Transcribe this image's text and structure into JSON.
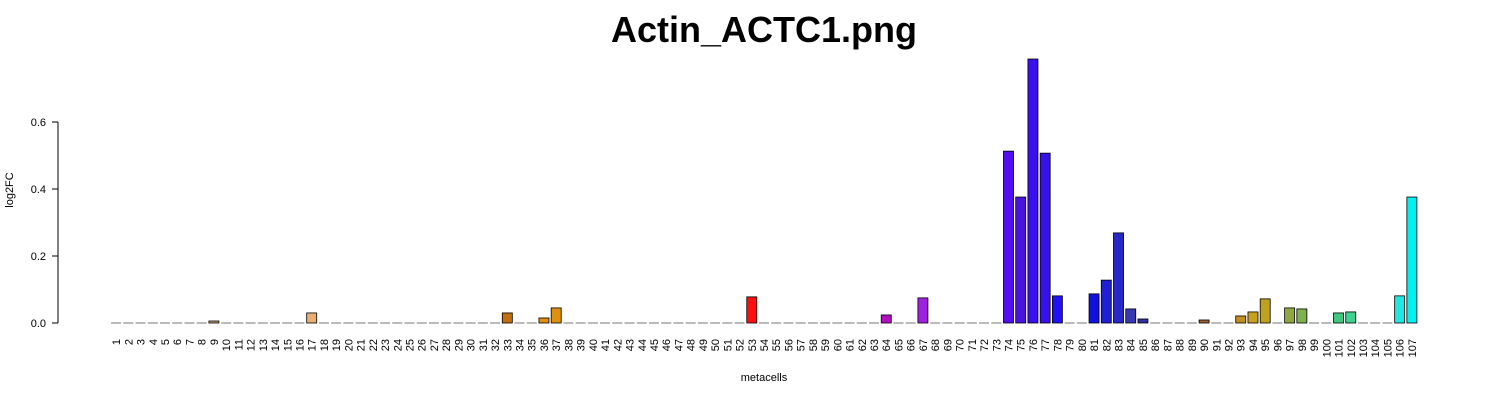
{
  "chart_data": {
    "type": "bar",
    "title": "Actin_ACTC1.png",
    "x_label": "metacells",
    "y_label": "log2FC",
    "categories": [
      "1",
      "2",
      "3",
      "4",
      "5",
      "6",
      "7",
      "8",
      "9",
      "10",
      "11",
      "12",
      "13",
      "14",
      "15",
      "16",
      "17",
      "18",
      "19",
      "20",
      "21",
      "22",
      "23",
      "24",
      "25",
      "26",
      "27",
      "28",
      "29",
      "30",
      "31",
      "32",
      "33",
      "34",
      "35",
      "36",
      "37",
      "38",
      "39",
      "40",
      "41",
      "42",
      "43",
      "44",
      "45",
      "46",
      "47",
      "48",
      "49",
      "50",
      "51",
      "52",
      "53",
      "54",
      "55",
      "56",
      "57",
      "58",
      "59",
      "60",
      "61",
      "62",
      "63",
      "64",
      "65",
      "66",
      "67",
      "68",
      "69",
      "70",
      "71",
      "72",
      "73",
      "74",
      "75",
      "76",
      "77",
      "78",
      "79",
      "80",
      "81",
      "82",
      "83",
      "84",
      "85",
      "86",
      "87",
      "88",
      "89",
      "90",
      "91",
      "92",
      "93",
      "94",
      "95",
      "96",
      "97",
      "98",
      "99",
      "100",
      "101",
      "102",
      "103",
      "104",
      "105",
      "106",
      "107"
    ],
    "values": [
      0,
      0,
      0,
      0,
      0,
      0,
      0,
      0,
      0.006,
      0,
      0,
      0,
      0,
      0,
      0,
      0,
      0.03,
      0,
      0,
      0,
      0,
      0,
      0,
      0,
      0,
      0,
      0,
      0,
      0,
      0,
      0,
      0,
      0.03,
      0,
      0,
      0.015,
      0.045,
      0,
      0,
      0,
      0,
      0,
      0,
      0,
      0,
      0,
      0,
      0,
      0,
      0,
      0,
      0,
      0.078,
      0,
      0,
      0,
      0,
      0,
      0,
      0,
      0,
      0,
      0,
      0.024,
      0,
      0,
      0.075,
      0,
      0,
      0,
      0,
      0,
      0,
      0.513,
      0.376,
      0.788,
      0.507,
      0.081,
      0,
      0,
      0.087,
      0.128,
      0.269,
      0.042,
      0.012,
      0,
      0,
      0,
      0,
      0.009,
      0,
      0,
      0.021,
      0.033,
      0.072,
      0,
      0.045,
      0.042,
      0,
      0,
      0.03,
      0.033,
      0,
      0,
      0,
      0.081,
      0.376
    ],
    "colors": [
      "#999999",
      "#999999",
      "#999999",
      "#999999",
      "#999999",
      "#999999",
      "#999999",
      "#999999",
      "#c8a070",
      "#999999",
      "#999999",
      "#999999",
      "#999999",
      "#999999",
      "#999999",
      "#999999",
      "#e8b070",
      "#999999",
      "#999999",
      "#999999",
      "#999999",
      "#999999",
      "#999999",
      "#999999",
      "#999999",
      "#999999",
      "#999999",
      "#999999",
      "#999999",
      "#999999",
      "#999999",
      "#999999",
      "#c07010",
      "#999999",
      "#999999",
      "#e09010",
      "#e09010",
      "#999999",
      "#999999",
      "#999999",
      "#999999",
      "#999999",
      "#999999",
      "#999999",
      "#999999",
      "#999999",
      "#999999",
      "#999999",
      "#999999",
      "#999999",
      "#999999",
      "#999999",
      "#ff1010",
      "#999999",
      "#999999",
      "#999999",
      "#999999",
      "#999999",
      "#999999",
      "#999999",
      "#999999",
      "#999999",
      "#999999",
      "#b010c0",
      "#999999",
      "#999999",
      "#a020e0",
      "#999999",
      "#999999",
      "#999999",
      "#999999",
      "#999999",
      "#999999",
      "#5010f0",
      "#4a14e0",
      "#3a10f0",
      "#3810e8",
      "#2010f8",
      "#999999",
      "#999999",
      "#1010e0",
      "#2020d0",
      "#2828c8",
      "#3838b0",
      "#3030a0",
      "#999999",
      "#999999",
      "#999999",
      "#999999",
      "#a06030",
      "#999999",
      "#999999",
      "#c09020",
      "#c8a020",
      "#c0a020",
      "#999999",
      "#90a840",
      "#80b050",
      "#999999",
      "#999999",
      "#40c880",
      "#40d090",
      "#999999",
      "#999999",
      "#999999",
      "#20e8e0",
      "#00f0f0"
    ],
    "ylim": [
      0,
      0.8
    ],
    "yticks": [
      {
        "value": 0,
        "label": "0.0"
      },
      0.2,
      0.4,
      0.6
    ]
  }
}
